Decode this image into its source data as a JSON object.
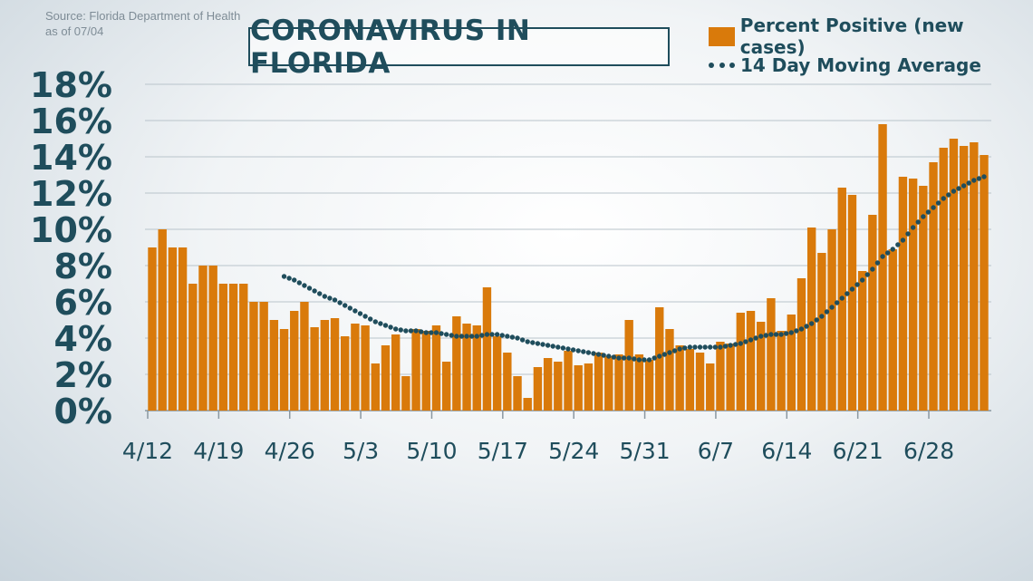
{
  "source": {
    "line1": "Source: Florida Department of Health",
    "line2": "as of 07/04"
  },
  "chart_data": {
    "type": "bar",
    "title": "CORONAVIRUS IN FLORIDA",
    "xlabel": "",
    "ylabel": "",
    "ylim": [
      0,
      18
    ],
    "y_ticks": [
      "0%",
      "2%",
      "4%",
      "6%",
      "8%",
      "10%",
      "12%",
      "14%",
      "16%",
      "18%"
    ],
    "x_tick_labels": [
      "4/12",
      "4/19",
      "4/26",
      "5/3",
      "5/10",
      "5/17",
      "5/24",
      "5/31",
      "6/7",
      "6/14",
      "6/21",
      "6/28"
    ],
    "x_tick_day_index": [
      0,
      7,
      14,
      21,
      28,
      35,
      42,
      49,
      56,
      63,
      70,
      77
    ],
    "grid": true,
    "legend_position": "top-right",
    "colors": {
      "bars": "#d97a0b",
      "average": "#1f4d5c",
      "axis_text": "#1f4d5c",
      "tick_text": "#1f4d5c"
    },
    "series": [
      {
        "name": "Percent Positive (new cases)",
        "type": "bar",
        "values": [
          9.0,
          10.0,
          9.0,
          9.0,
          7.0,
          8.0,
          8.0,
          7.0,
          7.0,
          7.0,
          6.0,
          6.0,
          5.0,
          4.5,
          5.5,
          6.0,
          4.6,
          5.0,
          5.1,
          4.1,
          4.8,
          4.7,
          2.6,
          3.6,
          4.2,
          1.9,
          4.5,
          4.4,
          4.7,
          2.7,
          5.2,
          4.8,
          4.7,
          6.8,
          4.1,
          3.2,
          1.9,
          0.7,
          2.4,
          2.9,
          2.7,
          3.3,
          2.5,
          2.6,
          3.2,
          3.0,
          3.1,
          5.0,
          3.1,
          2.8,
          5.7,
          4.5,
          3.6,
          3.4,
          3.2,
          2.6,
          3.8,
          3.7,
          5.4,
          5.5,
          4.9,
          6.2,
          4.4,
          5.3,
          7.3,
          10.1,
          8.7,
          10.0,
          12.3,
          11.9,
          7.7,
          10.8,
          15.8,
          8.9,
          12.9,
          12.8,
          12.4,
          13.7,
          14.5,
          15.0,
          14.6,
          14.8,
          14.1
        ]
      },
      {
        "name": "14 Day Moving Average",
        "type": "dotted-line",
        "values": [
          null,
          null,
          null,
          null,
          null,
          null,
          null,
          null,
          null,
          null,
          null,
          null,
          null,
          7.4,
          7.2,
          6.9,
          6.6,
          6.3,
          6.1,
          5.8,
          5.5,
          5.2,
          4.9,
          4.7,
          4.5,
          4.4,
          4.4,
          4.3,
          4.3,
          4.2,
          4.1,
          4.1,
          4.1,
          4.2,
          4.2,
          4.1,
          4.0,
          3.8,
          3.7,
          3.6,
          3.5,
          3.4,
          3.3,
          3.2,
          3.1,
          3.0,
          2.9,
          2.9,
          2.8,
          2.8,
          3.0,
          3.2,
          3.4,
          3.5,
          3.5,
          3.5,
          3.5,
          3.6,
          3.7,
          3.9,
          4.1,
          4.2,
          4.2,
          4.3,
          4.5,
          4.8,
          5.2,
          5.7,
          6.2,
          6.7,
          7.2,
          7.8,
          8.5,
          8.9,
          9.4,
          10.1,
          10.7,
          11.2,
          11.7,
          12.1,
          12.4,
          12.7,
          12.9
        ]
      }
    ]
  }
}
